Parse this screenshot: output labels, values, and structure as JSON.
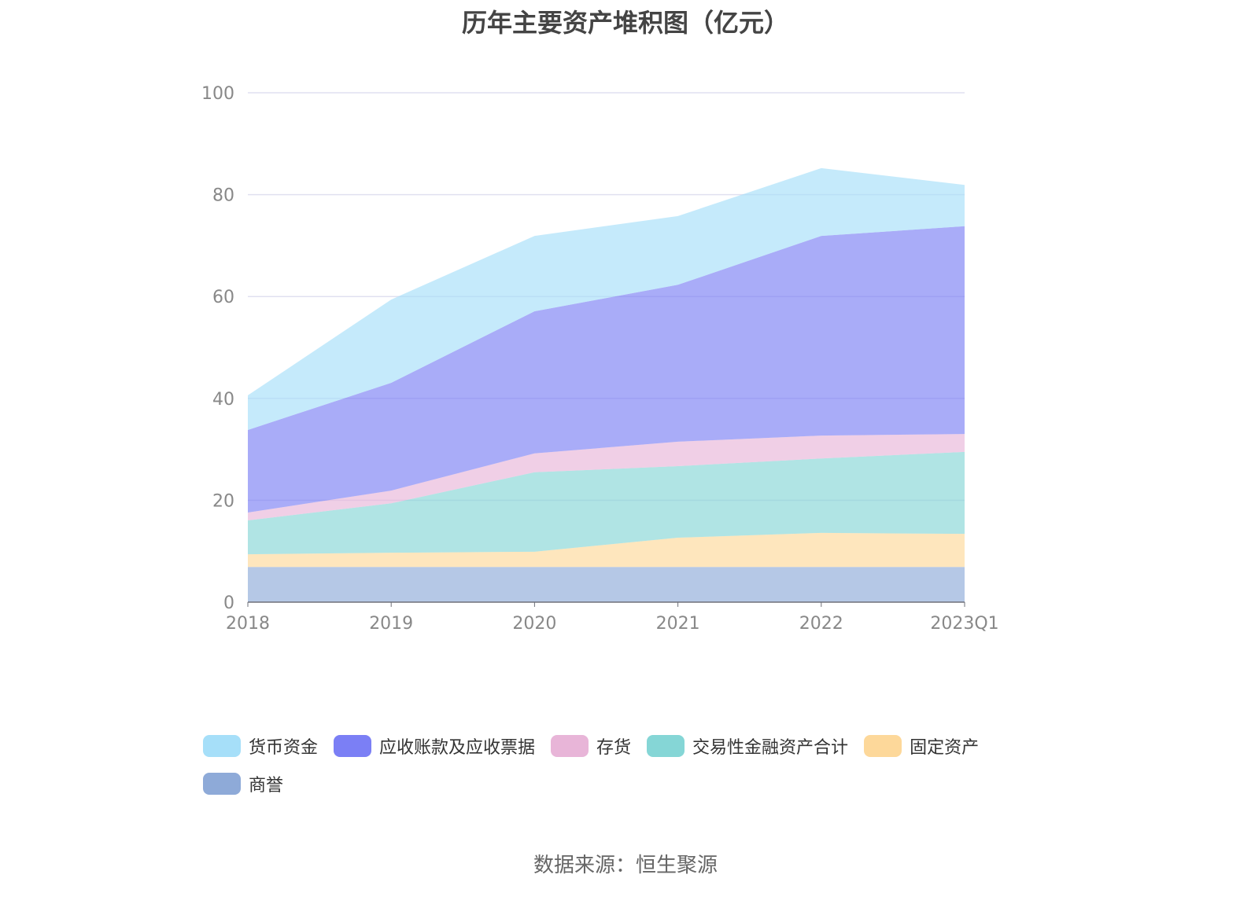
{
  "chart_data": {
    "type": "area",
    "stacked": true,
    "title": "历年主要资产堆积图（亿元）",
    "categories": [
      "2018",
      "2019",
      "2020",
      "2021",
      "2022",
      "2023Q1"
    ],
    "ylim": [
      0,
      100
    ],
    "yticks": [
      0,
      20,
      40,
      60,
      80,
      100
    ],
    "grid": true,
    "legend_position": "bottom",
    "series": [
      {
        "name": "商誉",
        "color": "#8eaad8",
        "values": [
          6.9,
          6.9,
          6.9,
          6.9,
          6.9,
          6.9
        ]
      },
      {
        "name": "固定资产",
        "color": "#fdd89a",
        "values": [
          2.5,
          2.8,
          3.0,
          5.75,
          6.7,
          6.5
        ]
      },
      {
        "name": "交易性金融资产合计",
        "color": "#85d6d6",
        "values": [
          6.65,
          9.7,
          15.6,
          14.05,
          14.6,
          16.1
        ]
      },
      {
        "name": "存货",
        "color": "#e8b5d8",
        "values": [
          1.55,
          2.5,
          3.7,
          4.8,
          4.5,
          3.5
        ]
      },
      {
        "name": "应收账款及应收票据",
        "color": "#7b7ff5",
        "values": [
          16.2,
          21.15,
          27.9,
          30.8,
          39.2,
          40.8
        ]
      },
      {
        "name": "货币资金",
        "color": "#a6dff9",
        "values": [
          6.8,
          16.35,
          14.8,
          13.5,
          13.3,
          8.1
        ]
      }
    ],
    "legend_order": [
      "货币资金",
      "应收账款及应收票据",
      "存货",
      "交易性金融资产合计",
      "固定资产",
      "商誉"
    ]
  },
  "source": "数据来源：恒生聚源"
}
